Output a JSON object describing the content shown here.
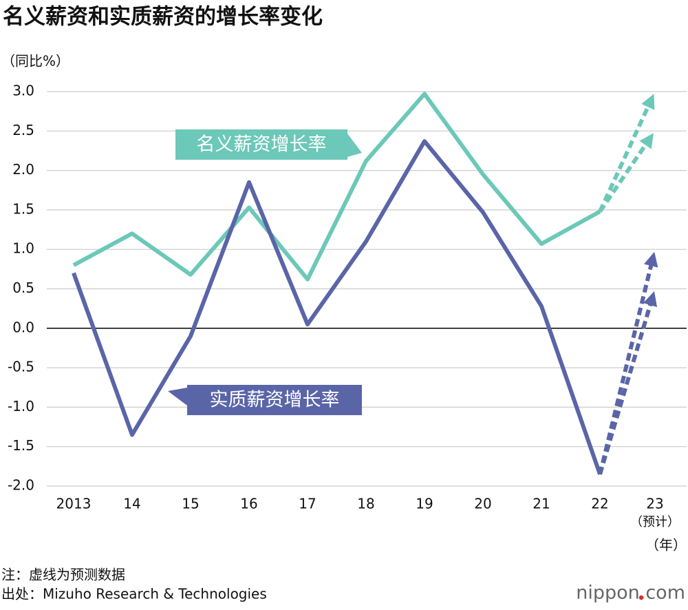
{
  "chart_data": {
    "type": "line",
    "title": "名义薪资和实质薪资的增长率变化",
    "y_label": "（同比%）",
    "x_label": "（年）",
    "forecast_note": "（预计）",
    "categories": [
      "2013",
      "14",
      "15",
      "16",
      "17",
      "18",
      "19",
      "20",
      "21",
      "22",
      "23"
    ],
    "ylim": [
      -2,
      3
    ],
    "yticks": [
      {
        "value": 3,
        "label": "3.0"
      },
      2.5,
      {
        "value": 2,
        "label": "2.0"
      },
      1.5,
      {
        "value": 1,
        "label": "1.0"
      },
      0.5,
      {
        "value": 0,
        "label": "0.0"
      },
      -0.5,
      {
        "value": -1,
        "label": "-1.0"
      },
      -1.5,
      {
        "value": -2,
        "label": "-2.0"
      }
    ],
    "grid": true,
    "series": [
      {
        "name": "名义薪资增长率",
        "color": "#6cc8b8",
        "values": [
          0.8,
          1.2,
          0.68,
          1.53,
          0.62,
          2.12,
          2.97,
          1.95,
          1.07,
          1.48,
          null
        ],
        "forecast_values": [
          3.0,
          2.5
        ]
      },
      {
        "name": "实质薪资增长率",
        "color": "#5a65a8",
        "values": [
          0.7,
          -1.35,
          -0.1,
          1.85,
          0.05,
          1.1,
          2.37,
          1.47,
          0.28,
          -1.85,
          null
        ],
        "forecast_values": [
          1.0,
          0.5
        ]
      }
    ],
    "notes": [
      "注：虚线为预测数据",
      "出处：Mizuho Research & Technologies"
    ],
    "source_logo": "nippon.com"
  }
}
